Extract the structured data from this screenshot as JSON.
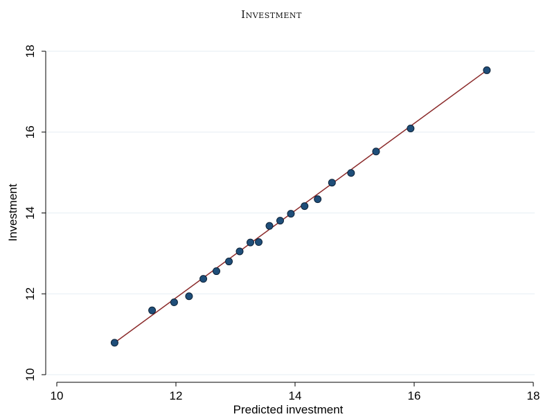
{
  "chart_data": {
    "type": "scatter",
    "title": "Investment",
    "xlabel": "Predicted investment",
    "ylabel": "Investment",
    "xlim": [
      10,
      18
    ],
    "ylim": [
      10,
      18
    ],
    "xticks": [
      10,
      12,
      14,
      16,
      18
    ],
    "yticks": [
      10,
      12,
      14,
      16,
      18
    ],
    "grid": "horizontal",
    "colors": {
      "points": "#1f4e79",
      "point_edge": "#0d2238",
      "fit_line": "#8b2a2a",
      "grid": "#e6eef3"
    },
    "series": [
      {
        "kind": "scatter",
        "points": [
          [
            10.97,
            10.79
          ],
          [
            11.6,
            11.59
          ],
          [
            11.97,
            11.79
          ],
          [
            12.22,
            11.94
          ],
          [
            12.46,
            12.37
          ],
          [
            12.68,
            12.56
          ],
          [
            12.89,
            12.8
          ],
          [
            13.07,
            13.05
          ],
          [
            13.25,
            13.27
          ],
          [
            13.39,
            13.28
          ],
          [
            13.57,
            13.68
          ],
          [
            13.75,
            13.81
          ],
          [
            13.93,
            13.98
          ],
          [
            14.16,
            14.17
          ],
          [
            14.38,
            14.34
          ],
          [
            14.62,
            14.75
          ],
          [
            14.94,
            14.99
          ],
          [
            15.36,
            15.52
          ],
          [
            15.94,
            16.09
          ],
          [
            17.22,
            17.53
          ]
        ]
      },
      {
        "kind": "line",
        "points": [
          [
            10.97,
            10.79
          ],
          [
            17.22,
            17.53
          ]
        ]
      }
    ]
  }
}
